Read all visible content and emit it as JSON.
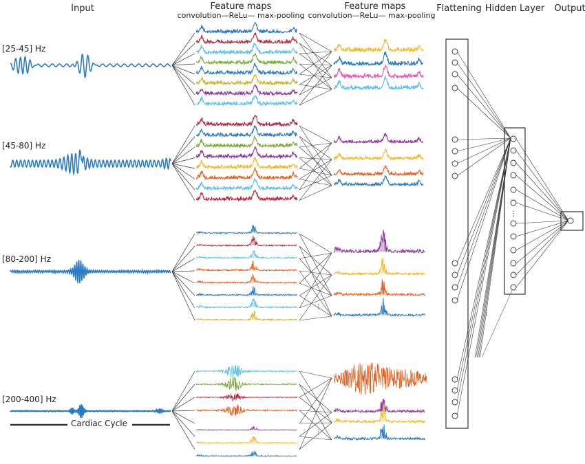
{
  "headers": {
    "input": "Input",
    "feature_maps_1": "Feature maps",
    "ops_1": "convolution—ReLu— max-pooling",
    "feature_maps_2": "Feature maps",
    "ops_2": "convolution—ReLu— max-pooling",
    "flattening": "Flattening",
    "hidden_layer": "Hidden Layer",
    "output": "Output"
  },
  "bands": [
    {
      "label": "[25-45] Hz",
      "stage1_colors": [
        "#2b7bc4",
        "#b52a3e",
        "#5bc0eb",
        "#7aab3a",
        "#2b7bc4",
        "#c9b72a",
        "#8e3b9c",
        "#5bc0eb"
      ],
      "stage2_colors": [
        "#f0b82a",
        "#2b7bc4",
        "#e25bae",
        "#5bc0eb"
      ]
    },
    {
      "label": "[45-80] Hz",
      "stage1_colors": [
        "#b52a3e",
        "#2b7bc4",
        "#7aab3a",
        "#8e3b9c",
        "#f0b82a",
        "#e4601f",
        "#5bc0eb",
        "#b52a3e"
      ],
      "stage2_colors": [
        "#8e3b9c",
        "#f0b82a",
        "#e4601f",
        "#2b7bc4"
      ]
    },
    {
      "label": "[80-200] Hz",
      "stage1_colors": [
        "#2b7bc4",
        "#b52a3e",
        "#5bc0eb",
        "#e4601f",
        "#e4601f",
        "#2b7bc4",
        "#5bc0eb",
        "#c9b72a"
      ],
      "stage2_colors": [
        "#8e3b9c",
        "#f0b82a",
        "#e4601f",
        "#2b7bc4"
      ]
    },
    {
      "label": "[200-400] Hz",
      "stage1_colors": [
        "#5bc0eb",
        "#7aab3a",
        "#b52a3e",
        "#e4601f",
        "#8e3b9c",
        "#f0b82a",
        "#2b7bc4"
      ],
      "stage2_colors": [
        "#e4601f",
        "#8e3b9c",
        "#f0b82a",
        "#2b7bc4"
      ]
    }
  ],
  "input_color": "#2b7bc4",
  "cardiac_cycle": "Cardiac Cycle",
  "ellipsis": "⋮"
}
